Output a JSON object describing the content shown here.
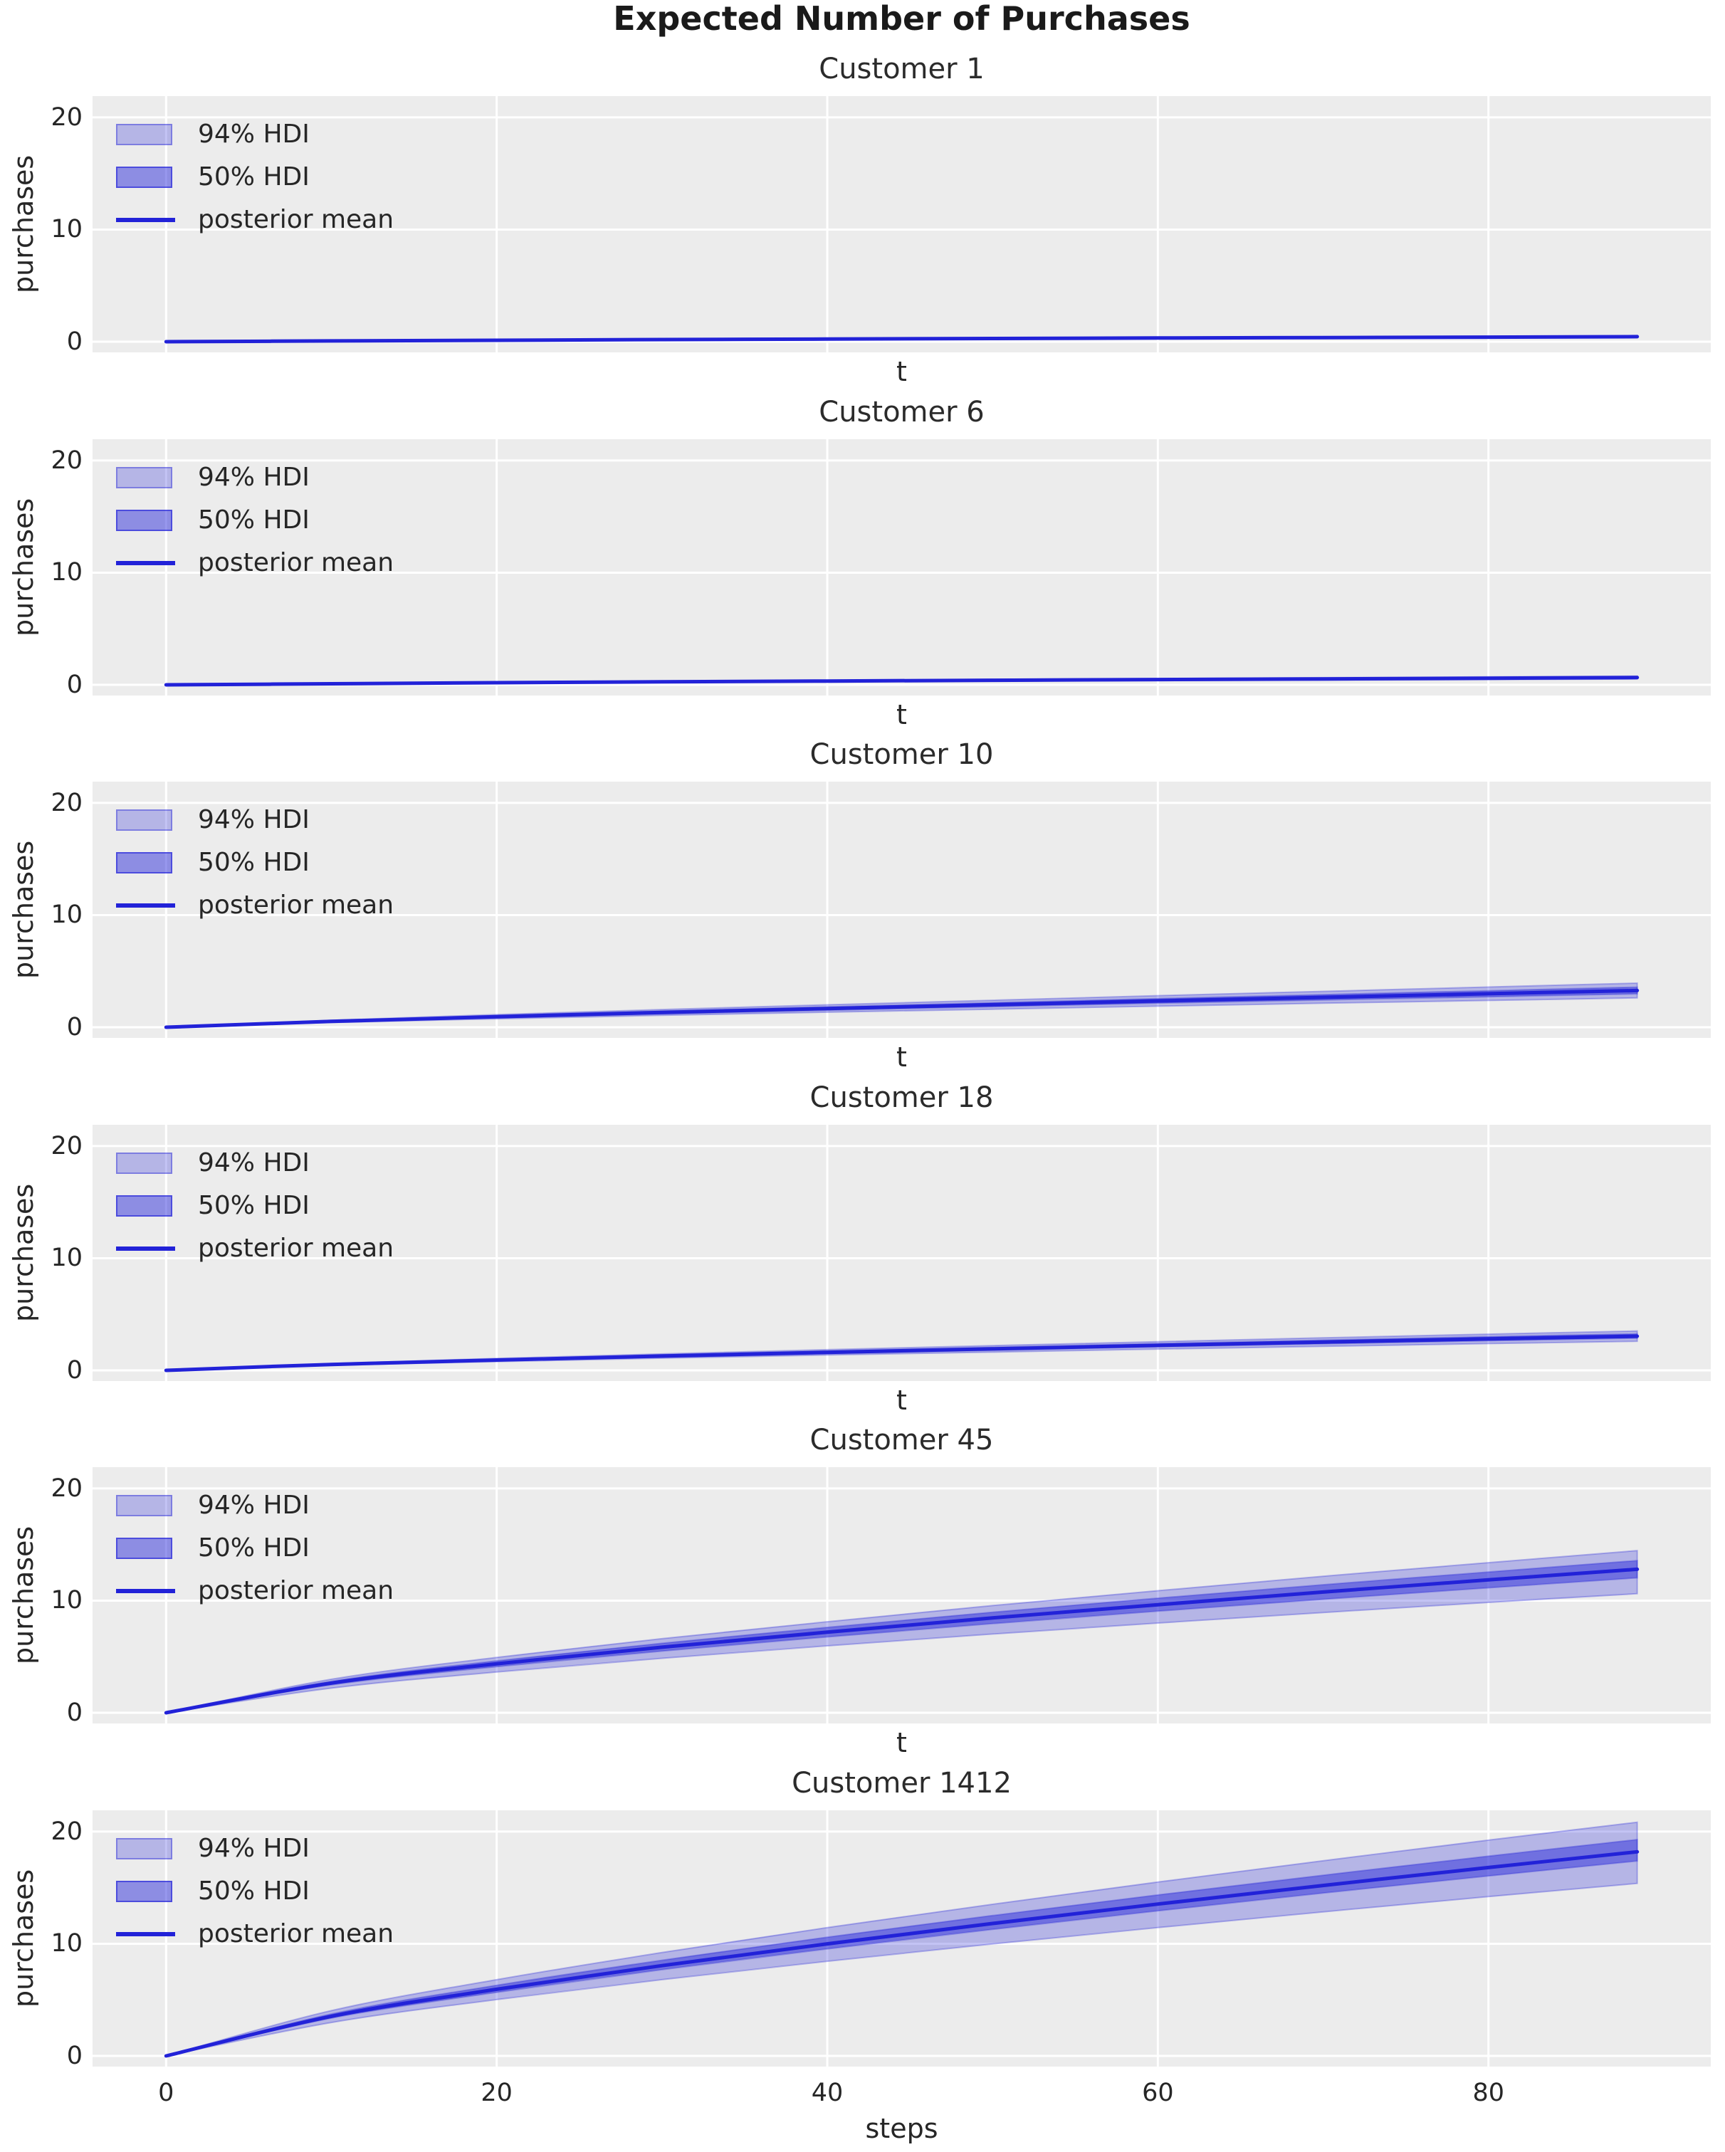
{
  "figure": {
    "suptitle": "Expected Number of Purchases",
    "background": "#ffffff",
    "axes_background": "#ececec",
    "grid_color": "#ffffff",
    "text_color": "#262626",
    "line_color": "#2222d8",
    "hdi94_fill": "rgba(34,34,216,0.27)",
    "hdi50_fill": "rgba(34,34,216,0.47)",
    "band_edge": "rgba(34,34,216,0.30)",
    "legend_labels": [
      "94% HDI",
      "50% HDI",
      "posterior mean"
    ],
    "legend_position": "upper left",
    "grid": true,
    "ytick_labels": [
      "20",
      "10",
      "0"
    ],
    "ytick_values": [
      20,
      10,
      0
    ],
    "xtick_labels": [
      "0",
      "20",
      "40",
      "60",
      "80"
    ],
    "xtick_values": [
      0,
      20,
      40,
      60,
      80
    ],
    "xlim": [
      -4.45,
      93.45
    ],
    "ylim": [
      -0.95,
      21.9
    ]
  },
  "chart_data": [
    {
      "type": "line",
      "title": "Customer 1",
      "xlabel": "t",
      "ylabel": "purchases",
      "show_xticklabels": false,
      "x": [
        0,
        10,
        20,
        30,
        40,
        50,
        60,
        70,
        80,
        89
      ],
      "mean": [
        0,
        0.07,
        0.13,
        0.19,
        0.24,
        0.29,
        0.33,
        0.37,
        0.41,
        0.45
      ],
      "hdi94_lower": [
        0,
        0.06,
        0.1,
        0.15,
        0.19,
        0.23,
        0.26,
        0.3,
        0.33,
        0.36
      ],
      "hdi94_upper": [
        0,
        0.08,
        0.16,
        0.23,
        0.29,
        0.35,
        0.4,
        0.44,
        0.49,
        0.54
      ],
      "hdi50_lower": [
        0,
        0.065,
        0.12,
        0.18,
        0.22,
        0.27,
        0.31,
        0.34,
        0.38,
        0.42
      ],
      "hdi50_upper": [
        0,
        0.075,
        0.14,
        0.2,
        0.26,
        0.31,
        0.35,
        0.4,
        0.44,
        0.48
      ]
    },
    {
      "type": "line",
      "title": "Customer 6",
      "xlabel": "t",
      "ylabel": "purchases",
      "show_xticklabels": false,
      "x": [
        0,
        10,
        20,
        30,
        40,
        50,
        60,
        70,
        80,
        89
      ],
      "mean": [
        0,
        0.1,
        0.19,
        0.27,
        0.34,
        0.41,
        0.47,
        0.53,
        0.59,
        0.65
      ],
      "hdi94_lower": [
        0,
        0.08,
        0.15,
        0.22,
        0.27,
        0.33,
        0.38,
        0.42,
        0.47,
        0.52
      ],
      "hdi94_upper": [
        0,
        0.12,
        0.23,
        0.32,
        0.41,
        0.49,
        0.56,
        0.64,
        0.71,
        0.78
      ],
      "hdi50_lower": [
        0,
        0.09,
        0.18,
        0.25,
        0.32,
        0.38,
        0.44,
        0.49,
        0.55,
        0.6
      ],
      "hdi50_upper": [
        0,
        0.11,
        0.2,
        0.29,
        0.36,
        0.44,
        0.5,
        0.57,
        0.63,
        0.7
      ]
    },
    {
      "type": "line",
      "title": "Customer 10",
      "xlabel": "t",
      "ylabel": "purchases",
      "show_xticklabels": false,
      "x": [
        0,
        10,
        20,
        30,
        40,
        50,
        60,
        70,
        80,
        89
      ],
      "mean": [
        0,
        0.52,
        0.94,
        1.32,
        1.67,
        2.01,
        2.35,
        2.67,
        2.99,
        3.28
      ],
      "hdi94_lower": [
        0,
        0.42,
        0.75,
        1.06,
        1.34,
        1.61,
        1.88,
        2.14,
        2.39,
        2.62
      ],
      "hdi94_upper": [
        0,
        0.62,
        1.13,
        1.58,
        2.0,
        2.41,
        2.82,
        3.2,
        3.59,
        3.94
      ],
      "hdi50_lower": [
        0,
        0.47,
        0.86,
        1.2,
        1.52,
        1.83,
        2.14,
        2.43,
        2.72,
        2.98
      ],
      "hdi50_upper": [
        0,
        0.57,
        1.02,
        1.44,
        1.82,
        2.19,
        2.56,
        2.91,
        3.26,
        3.58
      ]
    },
    {
      "type": "line",
      "title": "Customer 18",
      "xlabel": "t",
      "ylabel": "purchases",
      "show_xticklabels": false,
      "x": [
        0,
        10,
        20,
        30,
        40,
        50,
        60,
        70,
        80,
        89
      ],
      "mean": [
        0,
        0.53,
        0.92,
        1.28,
        1.61,
        1.92,
        2.23,
        2.52,
        2.81,
        3.05
      ],
      "hdi94_lower": [
        0,
        0.45,
        0.78,
        1.09,
        1.37,
        1.63,
        1.9,
        2.14,
        2.39,
        2.59
      ],
      "hdi94_upper": [
        0,
        0.61,
        1.06,
        1.47,
        1.85,
        2.21,
        2.56,
        2.9,
        3.23,
        3.51
      ],
      "hdi50_lower": [
        0,
        0.5,
        0.86,
        1.2,
        1.51,
        1.8,
        2.1,
        2.37,
        2.64,
        2.87
      ],
      "hdi50_upper": [
        0,
        0.57,
        0.98,
        1.37,
        1.72,
        2.05,
        2.39,
        2.7,
        3.01,
        3.26
      ]
    },
    {
      "type": "line",
      "title": "Customer 45",
      "xlabel": "t",
      "ylabel": "purchases",
      "show_xticklabels": false,
      "x": [
        0,
        10,
        20,
        30,
        40,
        50,
        60,
        70,
        80,
        89
      ],
      "mean": [
        0,
        2.65,
        4.37,
        5.85,
        7.19,
        8.46,
        9.64,
        10.77,
        11.85,
        12.8
      ],
      "hdi94_lower": [
        0,
        2.2,
        3.63,
        4.86,
        5.97,
        7.02,
        8.0,
        8.94,
        9.84,
        10.62
      ],
      "hdi94_upper": [
        0,
        2.99,
        4.94,
        6.61,
        8.12,
        9.56,
        10.89,
        12.17,
        13.39,
        14.46
      ],
      "hdi50_lower": [
        0,
        2.49,
        4.11,
        5.5,
        6.76,
        7.95,
        9.06,
        10.12,
        11.14,
        12.03
      ],
      "hdi50_upper": [
        0,
        2.81,
        4.63,
        6.2,
        7.62,
        8.97,
        10.22,
        11.42,
        12.56,
        13.57
      ]
    },
    {
      "type": "line",
      "title": "Customer 1412",
      "xlabel": "steps",
      "ylabel": "purchases",
      "show_xticklabels": true,
      "x": [
        0,
        10,
        20,
        30,
        40,
        50,
        60,
        70,
        80,
        89
      ],
      "mean": [
        0,
        3.53,
        5.94,
        8.05,
        9.99,
        11.81,
        13.54,
        15.2,
        16.8,
        18.2
      ],
      "hdi94_lower": [
        0,
        2.98,
        5.02,
        6.8,
        8.44,
        9.98,
        11.44,
        12.84,
        14.2,
        15.38
      ],
      "hdi94_upper": [
        0,
        4.04,
        6.8,
        9.22,
        11.44,
        13.52,
        15.5,
        17.4,
        19.24,
        20.84
      ],
      "hdi50_lower": [
        0,
        3.37,
        5.67,
        7.69,
        9.54,
        11.28,
        12.93,
        14.52,
        16.04,
        17.38
      ],
      "hdi50_upper": [
        0,
        3.74,
        6.3,
        8.53,
        10.59,
        12.52,
        14.35,
        16.11,
        17.81,
        19.29
      ]
    }
  ]
}
